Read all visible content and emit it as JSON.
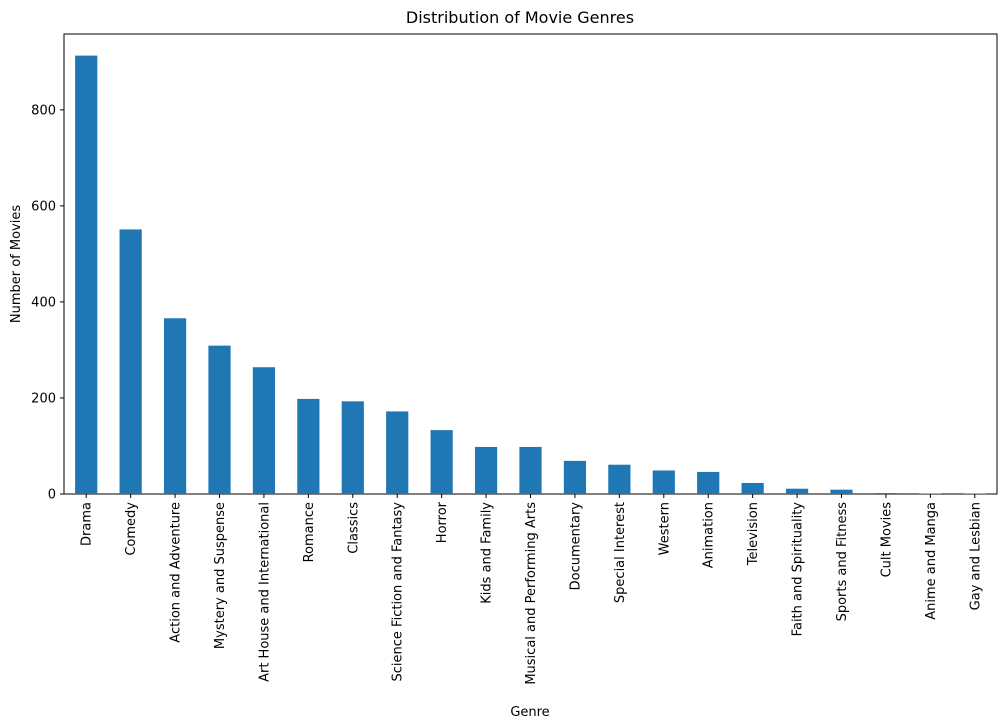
{
  "chart_data": {
    "type": "bar",
    "title": "Distribution of Movie Genres",
    "xlabel": "Genre",
    "ylabel": "Number of Movies",
    "ylim": [
      0,
      958
    ],
    "yticks": [
      0,
      200,
      400,
      600,
      800
    ],
    "grid": false,
    "bar_color": "#1f77b4",
    "categories": [
      "Drama",
      "Comedy",
      "Action and Adventure",
      "Mystery and Suspense",
      "Art House and International",
      "Romance",
      "Classics",
      "Science Fiction and Fantasy",
      "Horror",
      "Kids and Family",
      "Musical and Performing Arts",
      "Documentary",
      "Special Interest",
      "Western",
      "Animation",
      "Television",
      "Faith and Spirituality",
      "Sports and Fitness",
      "Cult Movies",
      "Anime and Manga",
      "Gay and Lesbian"
    ],
    "values": [
      913,
      551,
      366,
      309,
      264,
      198,
      193,
      172,
      133,
      98,
      98,
      69,
      61,
      49,
      46,
      23,
      11,
      9,
      2,
      1,
      1
    ]
  }
}
